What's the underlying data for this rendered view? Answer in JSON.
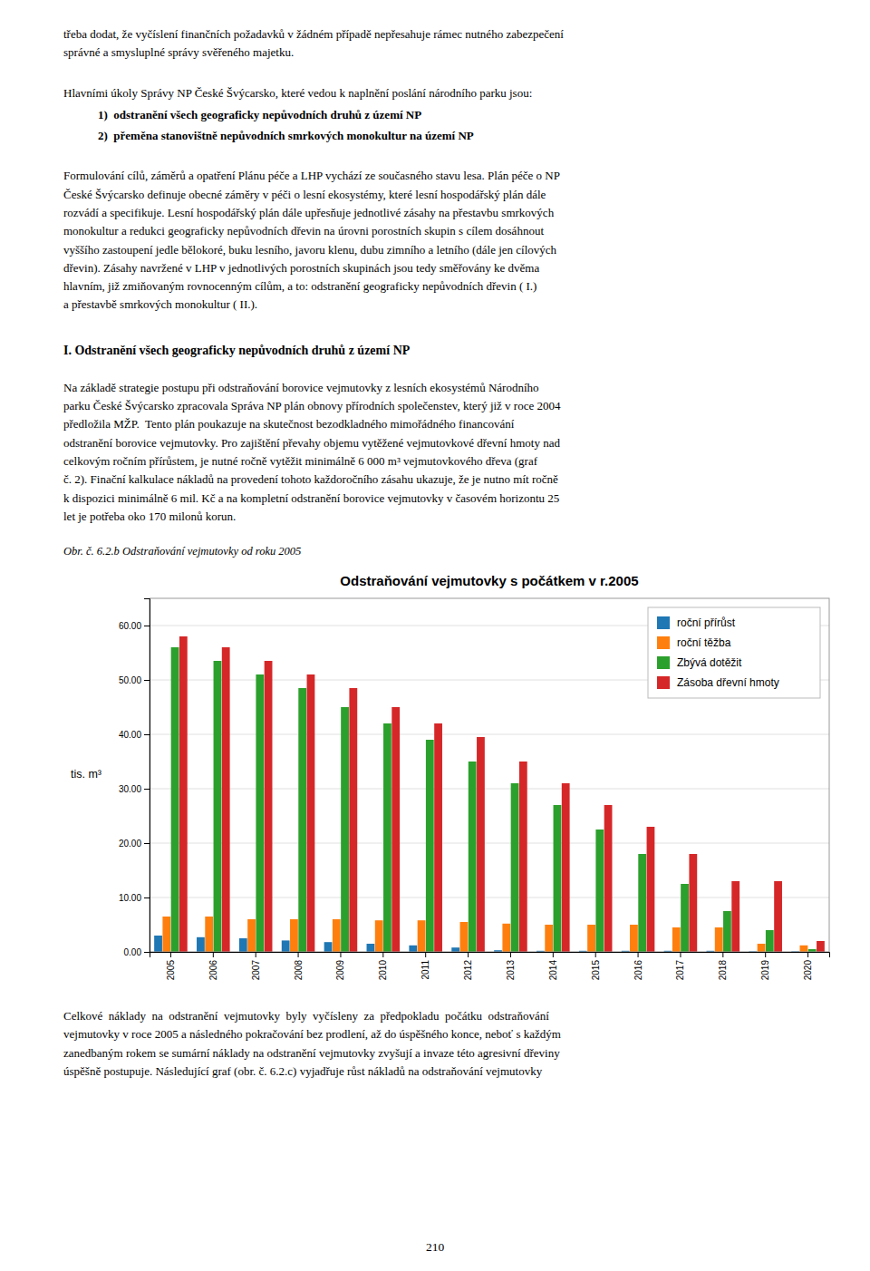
{
  "text_top": [
    [
      "třeba dodat, že vyčíslení finančních požadavků v žádném případě nepřesahuje rámec nutného zabezpečení",
      "správné a smysluplné správy svěřeného majetku."
    ],
    [
      "Hlavními úkoly Správy NP České Švýcarsko, které vedou k naplnění poslání národního parku jsou:"
    ],
    [
      "1)  odstranění všech geograficky nepůvodních druhů z území NP",
      "2)  přeměna stanovištně nepůvodních smrkových monokultur na území NP"
    ],
    [
      "Formulování cílů, záměrů a opatření Plánu péče a LHP vychází ze současného stavu lesa. Plán péče o NP",
      "České Švýcarsko definuje obecné záměry v péči o lesní ekosystémy, které lesní hospodářský plán dále",
      "rozvádí a specifikuje. Lesní hospodářský plán dále upřesňuje jednotlivé zásahy na přestavbu smrkových",
      "monokultur a redukci geograficky nepůvodních dřevin na úrovni porostních skupin s cílem dosáhnout",
      "vyššího zastoupení jedle bělokoré, buku lesního, javoru klenu, dubu zimního a letního (dále jen cílových",
      "dřevin). Zásahy navržené v LHP v jednotlivých porostních skupinách jsou tedy směřovány ke dvěma",
      "hlavním, již zmiňovaným rovnocenným cílům, a to: odstranění geograficky nepůvodních dřevin ( I.)",
      "a přestavbě smrkových monokultur ( II.)."
    ]
  ],
  "section_heading": "I. Odstranění všech geograficky nepůvodních druhů z území NP",
  "text_section": [
    "Na základě strategie postupu při odstraňování borovice vejmutovky z lesních ekosystémů Národního",
    "parku České Švýcarsko zpracovala Správa NP plán obnovy přírodních společenstev, který již v roce 2004",
    "předložila MŽP.  Tento plán poukazuje na skutečnost bezodkladného mimořádného financování",
    "odstranění borovice vejmutovky. Pro zajištění převahy objemu vytěžené vejmutovkové dřevní hmoty nad",
    "celkovým ročním přírůstem, je nutné ročně vytěžit minimálně 6 000 m³ vejmutovkového dřeva (graf",
    "č. 2). Finační kalkulace nákladů na provedení tohoto každoročního zásahu ukazuje, že je nutno mít ročně",
    "k dispozici minimálně 6 mil. Kč a na kompletní odstranění borovice vejmutovky v časovém horizontu 25",
    "let je potřeba oko 170 milonů korun."
  ],
  "caption": "Obr. č. 6.2.b Odstraňování vejmutovky od roku 2005",
  "chart_data": {
    "type": "bar",
    "title": "Odstraňování vejmutovky s počátkem v r.2005",
    "y_label": "tis. m³",
    "categories": [
      "2005",
      "2006",
      "2007",
      "2008",
      "2009",
      "2010",
      "2011",
      "2012",
      "2013",
      "2014",
      "2015",
      "2016",
      "2017",
      "2018",
      "2019",
      "2020"
    ],
    "series": [
      {
        "name": "roční přírůst",
        "values": [
          3.0,
          2.7,
          2.5,
          2.1,
          1.8,
          1.5,
          1.2,
          0.8,
          0.3,
          0.2,
          0.2,
          0.2,
          0.2,
          0.2,
          0.1,
          0.1
        ]
      },
      {
        "name": "roční těžba",
        "values": [
          6.5,
          6.5,
          6.0,
          6.0,
          6.0,
          5.8,
          5.8,
          5.5,
          5.2,
          5.0,
          5.0,
          5.0,
          4.5,
          4.5,
          1.5,
          1.2
        ]
      },
      {
        "name": "Zbývá dotěžit",
        "values": [
          56.0,
          53.5,
          51.0,
          48.5,
          45.0,
          42.0,
          39.0,
          35.0,
          31.0,
          27.0,
          22.5,
          18.0,
          12.5,
          7.5,
          4.0,
          0.5
        ]
      },
      {
        "name": "Zásoba dřevní hmoty",
        "values": [
          58.0,
          56.0,
          53.5,
          51.0,
          48.5,
          45.0,
          42.0,
          39.5,
          35.0,
          31.0,
          27.0,
          23.0,
          18.0,
          13.0,
          13.0,
          2.0
        ]
      }
    ],
    "ylim": [
      0,
      65
    ],
    "yticks": [
      {
        "value": 0,
        "label": "0.00"
      },
      {
        "value": 10,
        "label": "10.00"
      },
      {
        "value": 20,
        "label": "20.00"
      },
      {
        "value": 30,
        "label": "30.00"
      },
      {
        "value": 40,
        "label": "40.00"
      },
      {
        "value": 50,
        "label": "50.00"
      },
      {
        "value": 60,
        "label": "60.00"
      }
    ],
    "grid": true,
    "legend": "upper right"
  },
  "text_bottom": [
    "Celkové  náklady  na  odstranění  vejmutovky  byly  vyčísleny  za  předpokladu  počátku  odstraňování",
    "vejmutovky v roce 2005 a následného pokračování bez prodlení, až do úspěšného konce, neboť s každým",
    "zanedbaným rokem se sumární náklady na odstranění vejmutovky zvyšují a invaze této agresivní dřeviny",
    "úspěšně postupuje. Následující graf (obr. č. 6.2.c) vyjadřuje růst nákladů na odstraňování vejmutovky"
  ],
  "page_number": "210"
}
